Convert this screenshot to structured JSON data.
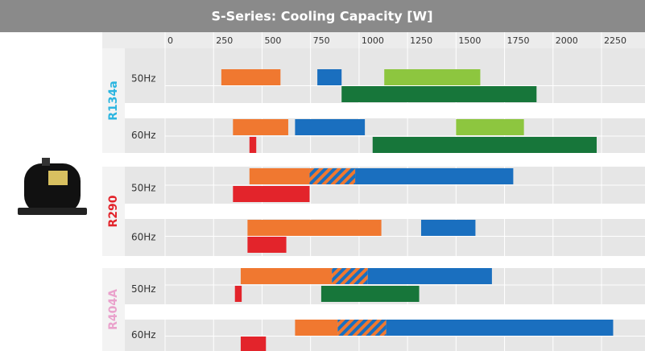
{
  "chart_data": {
    "type": "range-bar",
    "title": "S-Series: Cooling Capacity [W]",
    "xlim": [
      0,
      2470
    ],
    "xticks": [
      0,
      250,
      500,
      750,
      1000,
      1250,
      1500,
      1750,
      2000,
      2250
    ],
    "groups": [
      {
        "label": "R134a",
        "color": "#2bb5e0",
        "rows": [
          {
            "label": "50Hz",
            "lanes": [
              [
                {
                  "start": 290,
                  "end": 595,
                  "color": "#f07830"
                },
                {
                  "start": 785,
                  "end": 910,
                  "color": "#1a6fbf"
                },
                {
                  "start": 1130,
                  "end": 1625,
                  "color": "#8dc63f"
                }
              ],
              [
                {
                  "start": 910,
                  "end": 1915,
                  "color": "#17763a"
                }
              ]
            ]
          },
          {
            "label": "60Hz",
            "lanes": [
              [
                {
                  "start": 350,
                  "end": 635,
                  "color": "#f07830"
                },
                {
                  "start": 670,
                  "end": 1030,
                  "color": "#1a6fbf"
                },
                {
                  "start": 1500,
                  "end": 1850,
                  "color": "#8dc63f"
                }
              ],
              [
                {
                  "start": 435,
                  "end": 470,
                  "color": "#e3242b"
                },
                {
                  "start": 1070,
                  "end": 2225,
                  "color": "#17763a"
                }
              ]
            ]
          }
        ]
      },
      {
        "label": "R290",
        "color": "#e3242b",
        "rows": [
          {
            "label": "50Hz",
            "lanes": [
              [
                {
                  "start": 435,
                  "end": 745,
                  "color": "#f07830"
                },
                {
                  "start": 745,
                  "end": 980,
                  "color": "#f07830",
                  "hatch": "#1a6fbf"
                },
                {
                  "start": 980,
                  "end": 1795,
                  "color": "#1a6fbf"
                }
              ],
              [
                {
                  "start": 350,
                  "end": 745,
                  "color": "#e3242b"
                }
              ]
            ]
          },
          {
            "label": "60Hz",
            "lanes": [
              [
                {
                  "start": 425,
                  "end": 1115,
                  "color": "#f07830"
                },
                {
                  "start": 1320,
                  "end": 1600,
                  "color": "#1a6fbf"
                }
              ],
              [
                {
                  "start": 425,
                  "end": 625,
                  "color": "#e3242b"
                }
              ]
            ]
          }
        ]
      },
      {
        "label": "R404A",
        "color": "#eaa2cc",
        "rows": [
          {
            "label": "50Hz",
            "lanes": [
              [
                {
                  "start": 390,
                  "end": 860,
                  "color": "#f07830"
                },
                {
                  "start": 860,
                  "end": 1045,
                  "color": "#f07830",
                  "hatch": "#1a6fbf"
                },
                {
                  "start": 1045,
                  "end": 1685,
                  "color": "#1a6fbf"
                }
              ],
              [
                {
                  "start": 360,
                  "end": 395,
                  "color": "#e3242b"
                },
                {
                  "start": 805,
                  "end": 1310,
                  "color": "#17763a"
                }
              ]
            ]
          },
          {
            "label": "60Hz",
            "lanes": [
              [
                {
                  "start": 670,
                  "end": 890,
                  "color": "#f07830"
                },
                {
                  "start": 890,
                  "end": 1140,
                  "color": "#f07830",
                  "hatch": "#1a6fbf"
                },
                {
                  "start": 1140,
                  "end": 2310,
                  "color": "#1a6fbf"
                }
              ],
              [
                {
                  "start": 390,
                  "end": 520,
                  "color": "#e3242b"
                }
              ]
            ]
          }
        ]
      }
    ]
  }
}
